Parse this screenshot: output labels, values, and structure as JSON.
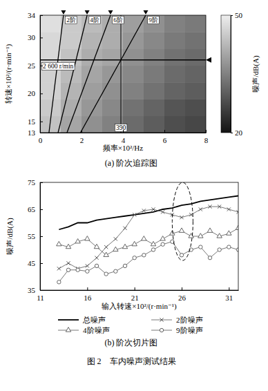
{
  "chart_data": [
    {
      "type": "heatmap",
      "subtitle": "(a) 阶次追踪图",
      "x_label": "频率×10²/Hz",
      "y_label": "转速×10²/(r·min⁻¹)",
      "xlim": [
        0,
        8
      ],
      "xticks": [
        0,
        2,
        4,
        6,
        8
      ],
      "ylim": [
        13,
        34
      ],
      "yticks": [
        13,
        15,
        20,
        25,
        30,
        34
      ],
      "x_bins": [
        0,
        1,
        2,
        3,
        4,
        5,
        6,
        7,
        8
      ],
      "y_bins": [
        13,
        16,
        19,
        22,
        25,
        28,
        31,
        34
      ],
      "cells": [
        [
          44,
          40,
          37,
          35,
          32,
          30,
          28,
          27
        ],
        [
          45,
          41,
          38,
          36,
          33,
          31,
          29,
          28
        ],
        [
          46,
          42,
          39,
          37,
          35,
          33,
          31,
          30
        ],
        [
          46,
          43,
          40,
          38,
          36,
          34,
          32,
          31
        ],
        [
          47,
          44,
          41,
          40,
          37,
          35,
          33,
          32
        ],
        [
          47,
          45,
          42,
          41,
          38,
          36,
          34,
          33
        ],
        [
          48,
          45,
          43,
          41,
          39,
          37,
          35,
          34
        ]
      ],
      "colorbar": {
        "range": [
          20,
          50
        ],
        "ticks": [
          20,
          50
        ],
        "label": "噪声/dB(A)"
      },
      "order_lines": [
        {
          "name": "2阶",
          "x": [
            0.43,
            1.13
          ],
          "y": [
            13,
            34
          ]
        },
        {
          "name": "4阶",
          "x": [
            0.87,
            2.27
          ],
          "y": [
            13,
            34
          ]
        },
        {
          "name": "6阶",
          "x": [
            1.3,
            3.4
          ],
          "y": [
            13,
            34
          ]
        },
        {
          "name": "9阶",
          "x": [
            1.95,
            5.1
          ],
          "y": [
            13,
            34
          ]
        }
      ],
      "reference_lines": [
        {
          "axis": "y",
          "value": 26,
          "label": "2 600 r/min"
        },
        {
          "axis": "x",
          "value": 3.9,
          "label": "390"
        }
      ]
    },
    {
      "type": "line",
      "subtitle": "(b) 阶次切片图",
      "x_label": "输入转速×10²/(r·min⁻¹)",
      "y_label": "噪声/dB(A)",
      "xlim": [
        11,
        32
      ],
      "xticks": [
        11,
        16,
        21,
        26,
        31
      ],
      "ylim": [
        35,
        75
      ],
      "yticks": [
        35,
        45,
        55,
        65,
        75
      ],
      "legend": "bottom",
      "x": [
        13,
        14,
        15,
        16,
        17,
        18,
        19,
        20,
        21,
        22,
        23,
        24,
        25,
        26,
        27,
        28,
        29,
        30,
        31,
        32
      ],
      "series": [
        {
          "name": "总噪声",
          "color": "#000000",
          "marker": "none",
          "line_style": "solid",
          "values": [
            57.5,
            58.5,
            60,
            60,
            61,
            61.5,
            62,
            62.5,
            63,
            63.5,
            64,
            65,
            65.5,
            66.5,
            67,
            68,
            68.5,
            69,
            69.5,
            70
          ]
        },
        {
          "name": "2阶噪声",
          "color": "#555555",
          "marker": "x",
          "line_style": "solid",
          "values": [
            43,
            45,
            43,
            44,
            47,
            51,
            54,
            58,
            63,
            64.5,
            65,
            64,
            63,
            62,
            63,
            65,
            66,
            66,
            65,
            64
          ]
        },
        {
          "name": "4阶噪声",
          "color": "#555555",
          "marker": "triangle",
          "line_style": "solid",
          "values": [
            52,
            51,
            53,
            54,
            51,
            48,
            50,
            51,
            52,
            54,
            52,
            54,
            56,
            57,
            55,
            55,
            57,
            55,
            56,
            58
          ]
        },
        {
          "name": "9阶噪声",
          "color": "#555555",
          "marker": "circle",
          "line_style": "solid",
          "values": [
            38,
            42.5,
            42.5,
            42,
            44,
            41,
            42,
            44,
            47,
            48,
            50,
            52,
            53,
            48,
            50,
            51,
            47,
            50,
            51,
            50
          ]
        }
      ],
      "annotations": [
        {
          "shape": "ellipse",
          "x": [
            25,
            27.2
          ],
          "y": [
            46,
            75
          ]
        }
      ]
    }
  ],
  "caption": "图 2　车内噪声测试结果"
}
